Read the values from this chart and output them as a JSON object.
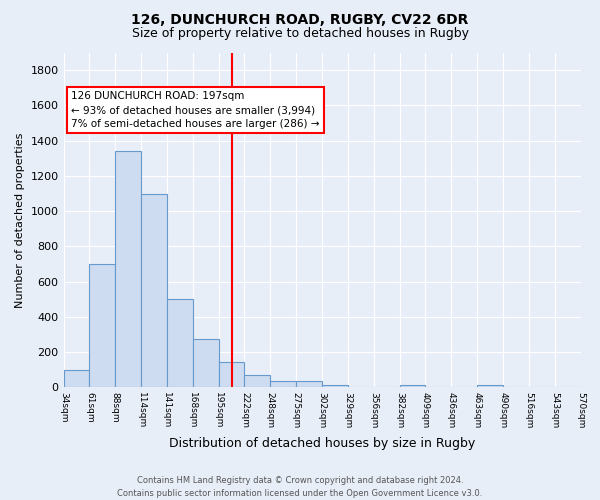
{
  "title1": "126, DUNCHURCH ROAD, RUGBY, CV22 6DR",
  "title2": "Size of property relative to detached houses in Rugby",
  "xlabel": "Distribution of detached houses by size in Rugby",
  "ylabel": "Number of detached properties",
  "footer1": "Contains HM Land Registry data © Crown copyright and database right 2024.",
  "footer2": "Contains public sector information licensed under the Open Government Licence v3.0.",
  "annotation_title": "126 DUNCHURCH ROAD: 197sqm",
  "annotation_line1": "← 93% of detached houses are smaller (3,994)",
  "annotation_line2": "7% of semi-detached houses are larger (286) →",
  "bar_values": [
    100,
    700,
    1340,
    1100,
    500,
    275,
    145,
    70,
    35,
    35,
    15,
    5,
    5,
    15,
    5,
    0,
    15,
    0,
    0,
    0
  ],
  "bar_labels": [
    "34sqm",
    "61sqm",
    "88sqm",
    "114sqm",
    "141sqm",
    "168sqm",
    "195sqm",
    "222sqm",
    "248sqm",
    "275sqm",
    "302sqm",
    "329sqm",
    "356sqm",
    "382sqm",
    "409sqm",
    "436sqm",
    "463sqm",
    "490sqm",
    "516sqm",
    "543sqm",
    "570sqm"
  ],
  "bar_color": "#cddcf0",
  "bar_edge_color": "#6699cc",
  "vline_color": "red",
  "ylim": [
    0,
    1900
  ],
  "yticks": [
    0,
    200,
    400,
    600,
    800,
    1000,
    1200,
    1400,
    1600,
    1800
  ],
  "bg_color": "#e8eef8",
  "grid_color": "#ffffff",
  "annotation_box_color": "white",
  "annotation_box_edge": "red"
}
